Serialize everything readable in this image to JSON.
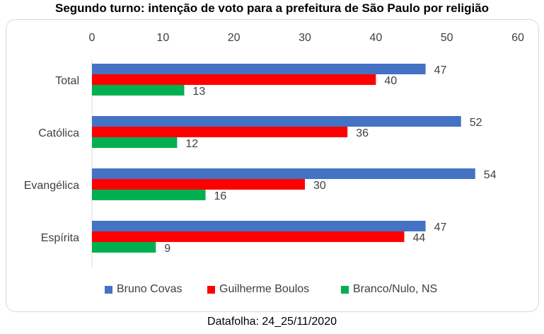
{
  "chart_data": {
    "type": "bar",
    "orientation": "horizontal",
    "title": "Segundo turno: intenção de voto para a prefeitura de São Paulo por religião",
    "categories": [
      "Total",
      "Católica",
      "Evangélica",
      "Espírita"
    ],
    "series": [
      {
        "name": "Bruno Covas",
        "color": "#4472c4",
        "values": [
          47,
          52,
          54,
          47
        ]
      },
      {
        "name": "Guilherme Boulos",
        "color": "#ff0000",
        "values": [
          40,
          36,
          30,
          44
        ]
      },
      {
        "name": "Branco/Nulo, NS",
        "color": "#00b050",
        "values": [
          13,
          12,
          16,
          9
        ]
      }
    ],
    "xlim": [
      0,
      60
    ],
    "xticks": [
      "0",
      "10",
      "20",
      "30",
      "40",
      "50",
      "60"
    ],
    "axis_position": "top",
    "grid": false,
    "legend_position": "bottom",
    "data_labels": true
  },
  "source": "Datafolha: 24_25/11/2020"
}
